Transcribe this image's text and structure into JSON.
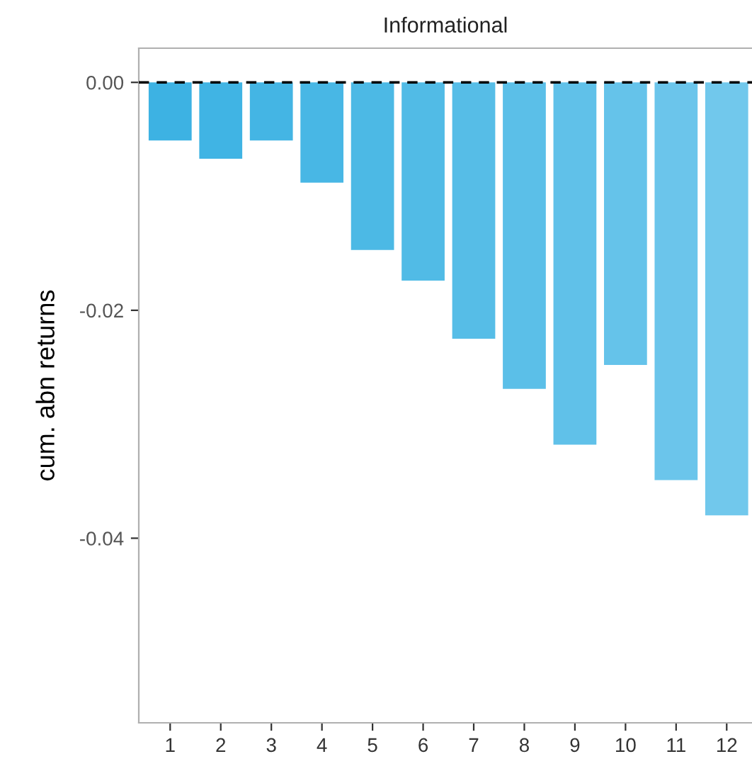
{
  "chart_data": {
    "type": "bar",
    "title": "Informational",
    "ylabel": "cum. abn returns",
    "categories": [
      "1",
      "2",
      "3",
      "4",
      "5",
      "6",
      "7",
      "8",
      "9",
      "10",
      "11",
      "12"
    ],
    "values": [
      -0.0051,
      -0.0067,
      -0.0051,
      -0.0088,
      -0.0147,
      -0.0174,
      -0.0225,
      -0.0269,
      -0.0318,
      -0.0248,
      -0.0349,
      -0.038
    ],
    "colors": [
      "#3db2e3",
      "#40b4e4",
      "#44b5e4",
      "#48b7e5",
      "#4cb9e5",
      "#51bbe6",
      "#56bde7",
      "#5bbfe8",
      "#60c1e9",
      "#65c3ea",
      "#6bc5eb",
      "#71c8ec"
    ],
    "ylim": [
      -0.0562,
      0.003
    ],
    "yticks": [
      {
        "value": -0.04,
        "label": "-0.04"
      },
      {
        "value": -0.02,
        "label": "-0.02"
      },
      {
        "value": 0,
        "label": "0.00"
      }
    ],
    "ref_lines": [
      {
        "axis": "y",
        "value": 0,
        "color": "#000000",
        "line_style": "dashed"
      }
    ],
    "grid": false,
    "legend": false
  }
}
